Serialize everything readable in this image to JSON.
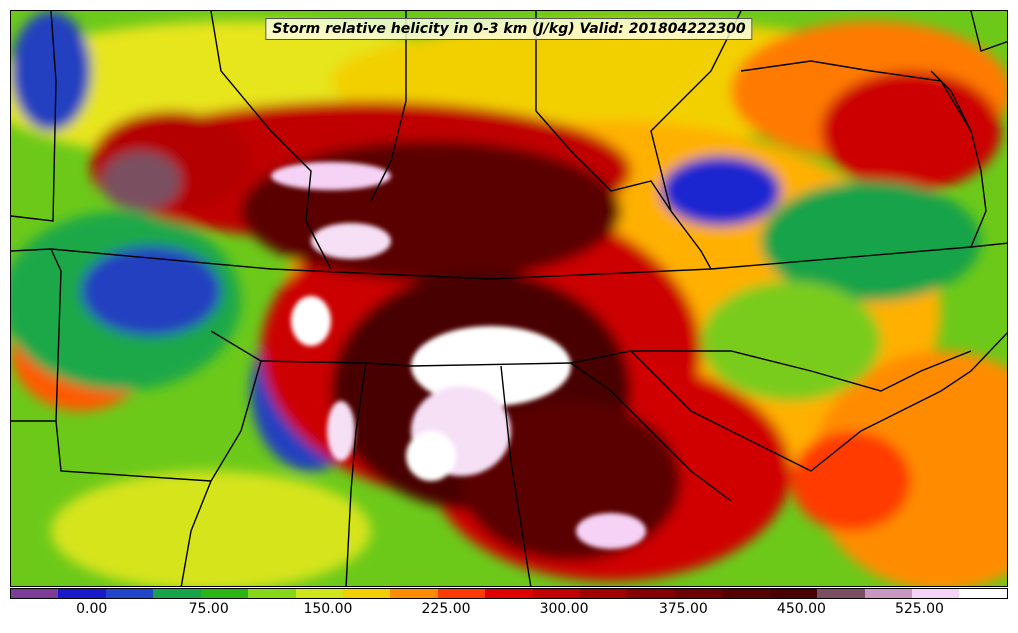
{
  "title": "Storm relative helicity in 0-3 km (J/kg) Valid: 201804222300",
  "colorbar": {
    "colors": [
      "#7d3c98",
      "#1a1acd",
      "#2346c8",
      "#17a34a",
      "#2bb515",
      "#86d61a",
      "#cfe61a",
      "#f2d000",
      "#ff8c00",
      "#ff3a00",
      "#e00000",
      "#c00000",
      "#a00000",
      "#840000",
      "#6a0000",
      "#560000",
      "#4a0000",
      "#7a5060",
      "#c898c0",
      "#f6d2f6",
      "#ffffff"
    ],
    "ticks": [
      {
        "label": "0.00",
        "frac": 0.0819
      },
      {
        "label": "75.00",
        "frac": 0.1991
      },
      {
        "label": "150.00",
        "frac": 0.3186
      },
      {
        "label": "225.00",
        "frac": 0.4369
      },
      {
        "label": "300.00",
        "frac": 0.5552
      },
      {
        "label": "375.00",
        "frac": 0.6747
      },
      {
        "label": "450.00",
        "frac": 0.793
      },
      {
        "label": "525.00",
        "frac": 0.9113
      }
    ]
  }
}
